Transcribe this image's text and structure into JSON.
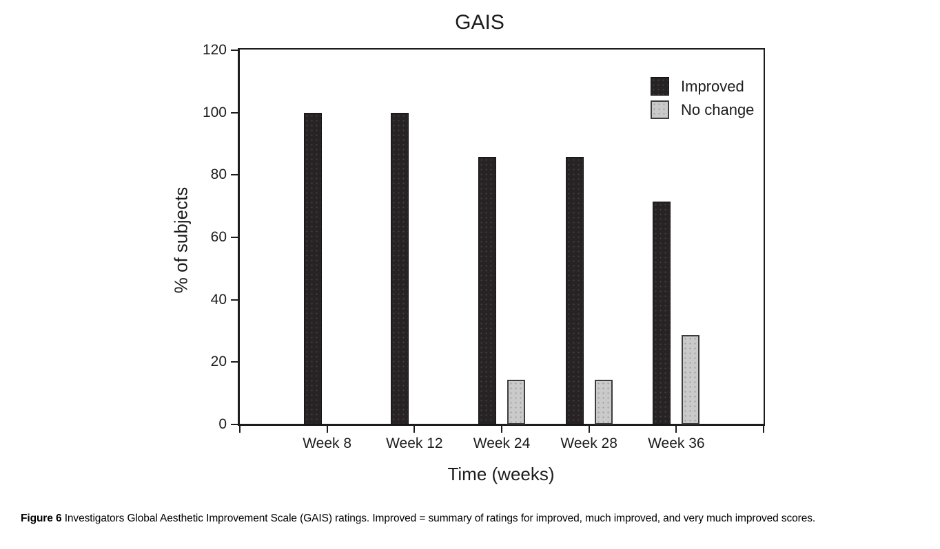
{
  "figure": {
    "caption_prefix": "Figure 6",
    "caption_text": " Investigators Global Aesthetic Improvement Scale (GAIS) ratings. Improved = summary of ratings for improved, much improved, and very much improved scores."
  },
  "chart_data": {
    "type": "bar",
    "title": "GAIS",
    "xlabel": "Time (weeks)",
    "ylabel": "% of subjects",
    "categories": [
      "Week 8",
      "Week 12",
      "Week 24",
      "Week 28",
      "Week 36"
    ],
    "series": [
      {
        "name": "Improved",
        "color": "#272325",
        "values": [
          100,
          100,
          85.7,
          85.7,
          71.4
        ]
      },
      {
        "name": "No change",
        "color": "#cacaca",
        "values": [
          0,
          0,
          14.3,
          14.3,
          28.6
        ]
      }
    ],
    "ylim": [
      0,
      120
    ],
    "yticks": [
      0,
      20,
      40,
      60,
      80,
      100,
      120
    ],
    "grid": false,
    "legend_position": "upper-right-inside",
    "background": "#ffffff",
    "axis_color": "#1c1c1c"
  }
}
